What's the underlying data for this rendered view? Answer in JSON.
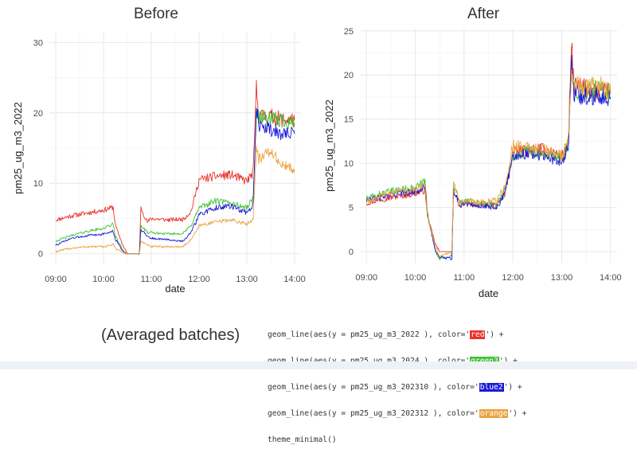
{
  "chart_data": [
    {
      "type": "line",
      "title": "Before",
      "xlabel": "date",
      "ylabel": "pm25_ug_m3_2022",
      "xlim": [
        "08:52",
        "14:08"
      ],
      "ylim": [
        -1.5,
        31.5
      ],
      "x_ticks": [
        "09:00",
        "10:00",
        "11:00",
        "12:00",
        "13:00",
        "14:00"
      ],
      "y_ticks": [
        0,
        10,
        20,
        30
      ],
      "grid": true,
      "series": [
        {
          "color": "#e8312a",
          "points": [
            [
              "09:00",
              4.8
            ],
            [
              "09:20",
              5.4
            ],
            [
              "09:40",
              5.8
            ],
            [
              "10:00",
              6.2
            ],
            [
              "10:12",
              6.6
            ],
            [
              "10:15",
              4.0
            ],
            [
              "10:25",
              1.0
            ],
            [
              "10:30",
              0.0
            ],
            [
              "10:45",
              0.0
            ],
            [
              "10:47",
              6.5
            ],
            [
              "10:55",
              4.5
            ],
            [
              "11:00",
              5.0
            ],
            [
              "11:20",
              4.8
            ],
            [
              "11:40",
              4.9
            ],
            [
              "11:50",
              6.0
            ],
            [
              "12:00",
              10.5
            ],
            [
              "12:20",
              11.0
            ],
            [
              "12:40",
              11.2
            ],
            [
              "13:00",
              10.3
            ],
            [
              "13:08",
              11.5
            ],
            [
              "13:12",
              23.5
            ],
            [
              "13:15",
              19.5
            ],
            [
              "13:30",
              19.5
            ],
            [
              "13:45",
              19.0
            ],
            [
              "14:00",
              19.0
            ]
          ]
        },
        {
          "color": "#3ec234",
          "points": [
            [
              "09:00",
              1.8
            ],
            [
              "09:20",
              2.6
            ],
            [
              "09:40",
              3.2
            ],
            [
              "10:00",
              3.6
            ],
            [
              "10:12",
              4.2
            ],
            [
              "10:15",
              2.5
            ],
            [
              "10:25",
              0.4
            ],
            [
              "10:30",
              0.0
            ],
            [
              "10:45",
              0.0
            ],
            [
              "10:47",
              4.0
            ],
            [
              "10:55",
              3.0
            ],
            [
              "11:00",
              3.0
            ],
            [
              "11:20",
              2.8
            ],
            [
              "11:40",
              2.9
            ],
            [
              "11:50",
              4.0
            ],
            [
              "12:00",
              6.5
            ],
            [
              "12:20",
              7.5
            ],
            [
              "12:40",
              7.2
            ],
            [
              "13:00",
              6.5
            ],
            [
              "13:08",
              8.0
            ],
            [
              "13:12",
              20.0
            ],
            [
              "13:15",
              19.5
            ],
            [
              "13:30",
              19.0
            ],
            [
              "13:45",
              19.0
            ],
            [
              "14:00",
              18.5
            ]
          ]
        },
        {
          "color": "#1a1ad6",
          "points": [
            [
              "09:00",
              1.2
            ],
            [
              "09:20",
              2.2
            ],
            [
              "09:40",
              2.6
            ],
            [
              "10:00",
              2.8
            ],
            [
              "10:12",
              3.2
            ],
            [
              "10:15",
              2.0
            ],
            [
              "10:25",
              0.3
            ],
            [
              "10:30",
              0.0
            ],
            [
              "10:45",
              0.0
            ],
            [
              "10:47",
              3.5
            ],
            [
              "10:55",
              2.5
            ],
            [
              "11:00",
              2.2
            ],
            [
              "11:20",
              2.0
            ],
            [
              "11:40",
              1.8
            ],
            [
              "11:50",
              3.0
            ],
            [
              "12:00",
              5.5
            ],
            [
              "12:20",
              6.5
            ],
            [
              "12:40",
              6.8
            ],
            [
              "13:00",
              5.8
            ],
            [
              "13:08",
              7.0
            ],
            [
              "13:12",
              20.5
            ],
            [
              "13:15",
              18.5
            ],
            [
              "13:30",
              17.5
            ],
            [
              "13:45",
              17.0
            ],
            [
              "14:00",
              17.0
            ]
          ]
        },
        {
          "color": "#eba441",
          "points": [
            [
              "09:00",
              0.3
            ],
            [
              "09:20",
              0.8
            ],
            [
              "09:40",
              1.0
            ],
            [
              "10:00",
              1.0
            ],
            [
              "10:12",
              1.3
            ],
            [
              "10:15",
              0.8
            ],
            [
              "10:25",
              0.1
            ],
            [
              "10:30",
              0.0
            ],
            [
              "10:45",
              0.0
            ],
            [
              "10:47",
              1.8
            ],
            [
              "10:55",
              1.2
            ],
            [
              "11:00",
              1.0
            ],
            [
              "11:20",
              1.0
            ],
            [
              "11:40",
              1.0
            ],
            [
              "11:50",
              2.0
            ],
            [
              "12:00",
              4.0
            ],
            [
              "12:20",
              4.5
            ],
            [
              "12:40",
              4.8
            ],
            [
              "13:00",
              4.2
            ],
            [
              "13:08",
              5.0
            ],
            [
              "13:12",
              15.5
            ],
            [
              "13:15",
              13.5
            ],
            [
              "13:30",
              14.5
            ],
            [
              "13:45",
              12.5
            ],
            [
              "14:00",
              12.0
            ]
          ]
        }
      ]
    },
    {
      "type": "line",
      "title": "After",
      "xlabel": "date",
      "ylabel": "pm25_ug_m3_2022",
      "xlim": [
        "08:52",
        "14:08"
      ],
      "ylim": [
        -1.25,
        25.25
      ],
      "x_ticks": [
        "09:00",
        "10:00",
        "11:00",
        "12:00",
        "13:00",
        "14:00"
      ],
      "y_ticks": [
        0,
        5,
        10,
        15,
        20,
        25
      ],
      "grid": true,
      "series": [
        {
          "color": "#e8312a",
          "points": [
            [
              "09:00",
              5.5
            ],
            [
              "09:20",
              6.0
            ],
            [
              "09:40",
              6.3
            ],
            [
              "10:00",
              6.6
            ],
            [
              "10:12",
              7.0
            ],
            [
              "10:15",
              4.0
            ],
            [
              "10:25",
              0.8
            ],
            [
              "10:30",
              0.0
            ],
            [
              "10:45",
              0.0
            ],
            [
              "10:47",
              7.0
            ],
            [
              "10:55",
              5.0
            ],
            [
              "11:00",
              5.5
            ],
            [
              "11:20",
              5.3
            ],
            [
              "11:40",
              5.3
            ],
            [
              "11:50",
              6.5
            ],
            [
              "12:00",
              11.2
            ],
            [
              "12:20",
              11.5
            ],
            [
              "12:40",
              11.6
            ],
            [
              "13:00",
              10.8
            ],
            [
              "13:08",
              12.0
            ],
            [
              "13:12",
              23.5
            ],
            [
              "13:15",
              18.8
            ],
            [
              "13:30",
              18.5
            ],
            [
              "13:45",
              18.0
            ],
            [
              "14:00",
              18.2
            ]
          ]
        },
        {
          "color": "#3ec234",
          "points": [
            [
              "09:00",
              6.0
            ],
            [
              "09:20",
              6.6
            ],
            [
              "09:40",
              7.0
            ],
            [
              "10:00",
              7.2
            ],
            [
              "10:12",
              8.0
            ],
            [
              "10:15",
              4.5
            ],
            [
              "10:25",
              0.0
            ],
            [
              "10:30",
              -0.8
            ],
            [
              "10:45",
              -0.5
            ],
            [
              "10:47",
              7.5
            ],
            [
              "10:55",
              5.5
            ],
            [
              "11:00",
              5.8
            ],
            [
              "11:20",
              5.5
            ],
            [
              "11:40",
              5.4
            ],
            [
              "11:50",
              7.0
            ],
            [
              "12:00",
              11.0
            ],
            [
              "12:20",
              11.5
            ],
            [
              "12:40",
              11.0
            ],
            [
              "13:00",
              10.5
            ],
            [
              "13:08",
              12.0
            ],
            [
              "13:12",
              20.5
            ],
            [
              "13:15",
              18.5
            ],
            [
              "13:30",
              18.0
            ],
            [
              "13:45",
              18.5
            ],
            [
              "14:00",
              17.8
            ]
          ]
        },
        {
          "color": "#1a1ad6",
          "points": [
            [
              "09:00",
              5.8
            ],
            [
              "09:20",
              6.2
            ],
            [
              "09:40",
              6.6
            ],
            [
              "10:00",
              6.8
            ],
            [
              "10:12",
              7.5
            ],
            [
              "10:15",
              4.2
            ],
            [
              "10:25",
              0.0
            ],
            [
              "10:30",
              -0.6
            ],
            [
              "10:45",
              -0.8
            ],
            [
              "10:47",
              7.0
            ],
            [
              "10:55",
              5.3
            ],
            [
              "11:00",
              5.5
            ],
            [
              "11:20",
              5.2
            ],
            [
              "11:40",
              5.0
            ],
            [
              "11:50",
              6.5
            ],
            [
              "12:00",
              10.8
            ],
            [
              "12:20",
              11.2
            ],
            [
              "12:40",
              10.8
            ],
            [
              "13:00",
              10.2
            ],
            [
              "13:08",
              11.8
            ],
            [
              "13:12",
              21.5
            ],
            [
              "13:15",
              18.0
            ],
            [
              "13:30",
              17.5
            ],
            [
              "13:45",
              17.8
            ],
            [
              "14:00",
              17.5
            ]
          ]
        },
        {
          "color": "#eba441",
          "points": [
            [
              "09:00",
              5.6
            ],
            [
              "09:20",
              6.4
            ],
            [
              "09:40",
              6.8
            ],
            [
              "10:00",
              7.0
            ],
            [
              "10:12",
              7.8
            ],
            [
              "10:15",
              4.0
            ],
            [
              "10:25",
              0.5
            ],
            [
              "10:30",
              -0.5
            ],
            [
              "10:45",
              0.0
            ],
            [
              "10:47",
              8.0
            ],
            [
              "10:55",
              5.6
            ],
            [
              "11:00",
              5.8
            ],
            [
              "11:20",
              5.6
            ],
            [
              "11:40",
              5.8
            ],
            [
              "11:50",
              7.5
            ],
            [
              "12:00",
              12.0
            ],
            [
              "12:20",
              11.8
            ],
            [
              "12:40",
              11.5
            ],
            [
              "13:00",
              10.8
            ],
            [
              "13:08",
              12.5
            ],
            [
              "13:12",
              19.5
            ],
            [
              "13:15",
              19.0
            ],
            [
              "13:30",
              18.5
            ],
            [
              "13:45",
              19.0
            ],
            [
              "14:00",
              18.0
            ]
          ]
        }
      ]
    }
  ],
  "caption": "(Averaged batches)",
  "code": {
    "lines": [
      {
        "pre": "geom_line(aes(y = pm25_ug_m3_2022 ), color='",
        "swatch": "red",
        "swatch_bg": "#e8312a",
        "post": "') +"
      },
      {
        "pre": "geom_line(aes(y = pm25_ug_m3_2024 ), color='",
        "swatch": "green3",
        "swatch_bg": "#3ec234",
        "post": "') +"
      },
      {
        "pre": "geom_line(aes(y = pm25_ug_m3_202310 ), color='",
        "swatch": "blue2",
        "swatch_bg": "#1a1ad6",
        "post": "') +"
      },
      {
        "pre": "geom_line(aes(y = pm25_ug_m3_202312 ), color='",
        "swatch": "orange",
        "swatch_bg": "#eba441",
        "post": "') +"
      },
      {
        "pre": "theme_minimal()",
        "swatch": "",
        "swatch_bg": "",
        "post": ""
      }
    ]
  }
}
